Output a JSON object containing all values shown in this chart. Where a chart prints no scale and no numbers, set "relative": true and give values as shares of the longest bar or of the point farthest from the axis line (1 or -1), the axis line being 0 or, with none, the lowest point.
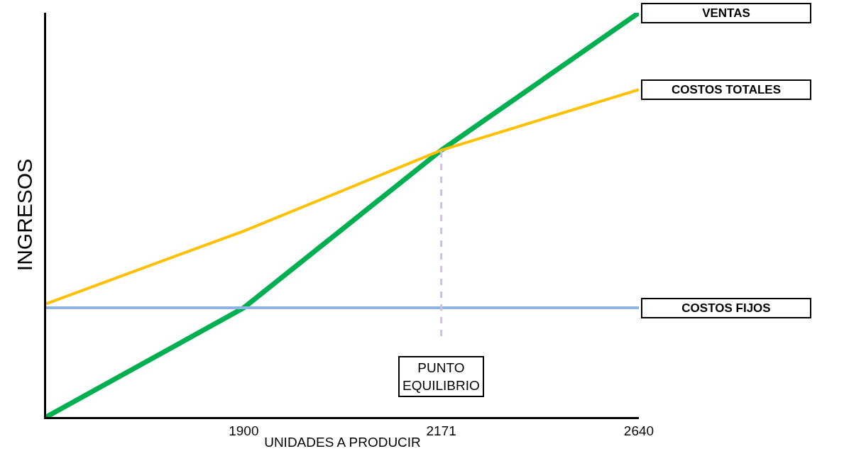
{
  "chart_data": {
    "type": "line",
    "relative": true,
    "xlabel": "UNIDADES A PRODUCIR",
    "ylabel": "INGRESOS",
    "categories": [
      null,
      "1900",
      "2171",
      "2640"
    ],
    "series": [
      {
        "name": "VENTAS",
        "color": "#00b050",
        "values": [
          0,
          0.27,
          0.66,
          1
        ]
      },
      {
        "name": "COSTOS TOTALES",
        "color": "#ffc000",
        "values": [
          0.28,
          0.46,
          0.66,
          0.81
        ]
      },
      {
        "name": "COSTOS FIJOS",
        "color": "#8eb4e3",
        "values": [
          0.27,
          0.27,
          0.27,
          0.27
        ]
      }
    ],
    "ref_lines": [
      {
        "axis": "x",
        "value": "2171",
        "label": "PUNTO\nEQUILIBRIO",
        "color": "#ccc0da",
        "line_style": "dashed"
      }
    ],
    "legend": false,
    "marker": "none",
    "line_style": "solid"
  }
}
